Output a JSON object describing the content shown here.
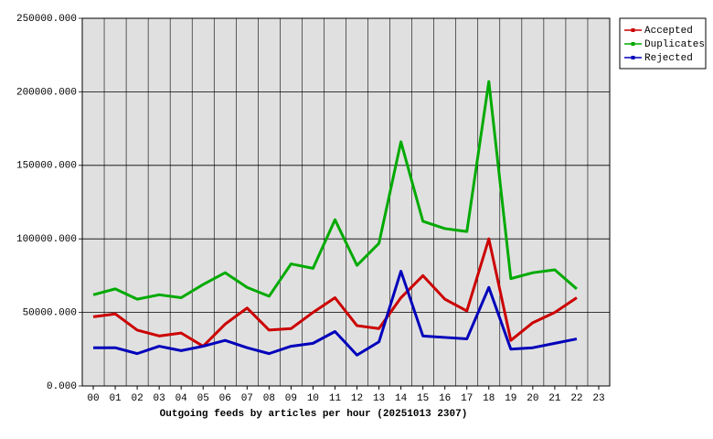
{
  "chart_data": {
    "type": "line",
    "xlabel": "Outgoing feeds by articles per hour (20251013 2307)",
    "categories": [
      "00",
      "01",
      "02",
      "03",
      "04",
      "05",
      "06",
      "07",
      "08",
      "09",
      "10",
      "11",
      "12",
      "13",
      "14",
      "15",
      "16",
      "17",
      "18",
      "19",
      "20",
      "21",
      "22",
      "23"
    ],
    "series": [
      {
        "name": "Accepted",
        "color": "#cc0000",
        "values": [
          47000,
          49000,
          38000,
          34000,
          36000,
          27000,
          42000,
          53000,
          38000,
          39000,
          50000,
          60000,
          41000,
          39000,
          60000,
          75000,
          59000,
          51000,
          100000,
          31000,
          43000,
          50000,
          60000,
          null
        ]
      },
      {
        "name": "Duplicates",
        "color": "#00aa00",
        "values": [
          62000,
          66000,
          59000,
          62000,
          60000,
          69000,
          77000,
          67000,
          61000,
          83000,
          80000,
          113000,
          82000,
          97000,
          166000,
          112000,
          107000,
          105000,
          207000,
          73000,
          77000,
          79000,
          66000,
          null
        ]
      },
      {
        "name": "Rejected",
        "color": "#0000bb",
        "values": [
          26000,
          26000,
          22000,
          27000,
          24000,
          27000,
          31000,
          26000,
          22000,
          27000,
          29000,
          37000,
          21000,
          30000,
          78000,
          34000,
          33000,
          32000,
          67000,
          25000,
          26000,
          29000,
          32000,
          null
        ]
      }
    ],
    "ylim": [
      0,
      250000
    ],
    "yticks": [
      {
        "value": 0,
        "label": "0.000"
      },
      {
        "value": 50000,
        "label": "50000.000"
      },
      {
        "value": 100000,
        "label": "100000.000"
      },
      {
        "value": 150000,
        "label": "150000.000"
      },
      {
        "value": 200000,
        "label": "200000.000"
      },
      {
        "value": 250000,
        "label": "250000.000"
      }
    ],
    "grid": true,
    "legend": "top-right"
  }
}
